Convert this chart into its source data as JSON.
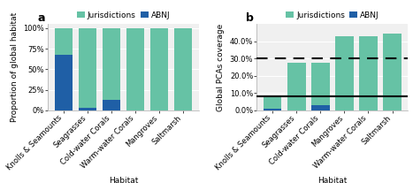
{
  "categories_a": [
    "Knolls & Seamounts",
    "Seagrasses",
    "Cold-water Corals",
    "Warm-water Corals",
    "Mangroves",
    "Saltmarsh"
  ],
  "categories_b": [
    "Knolls & Seamounts",
    "Seagrasses",
    "Cold-water Corals",
    "Mangroves",
    "Warm-water Corals",
    "Saltmarsh"
  ],
  "panel_a": {
    "jurisdictions": [
      33,
      97,
      87,
      100,
      100,
      100
    ],
    "abnj": [
      67,
      3,
      13,
      0,
      0,
      0
    ],
    "ylabel": "Proportion of global habitat",
    "yticks": [
      0,
      25,
      50,
      75,
      100
    ],
    "yticklabels": [
      "0%",
      "25%",
      "50%",
      "75%",
      "100%"
    ],
    "ylim": [
      0,
      105
    ]
  },
  "panel_b": {
    "jurisdictions": [
      6.5,
      27.5,
      24.5,
      43.0,
      43.0,
      44.5
    ],
    "abnj": [
      1.2,
      0,
      3.0,
      0,
      0,
      0
    ],
    "ylabel": "Global PCAs coverage",
    "yticks": [
      0,
      10,
      20,
      30,
      40
    ],
    "yticklabels": [
      "0.0%",
      "10.0%",
      "20.0%",
      "30.0%",
      "40.0%"
    ],
    "ylim": [
      0,
      50
    ],
    "hline_solid": 8.0,
    "hline_dashed": 30.0
  },
  "color_jurisdictions": "#66c2a5",
  "color_abnj": "#1f5fa6",
  "xlabel": "Habitat",
  "background_color": "#f0f0f0",
  "legend_fontsize": 6.5,
  "axis_fontsize": 6.5,
  "tick_fontsize": 6.0,
  "bar_width": 0.75
}
